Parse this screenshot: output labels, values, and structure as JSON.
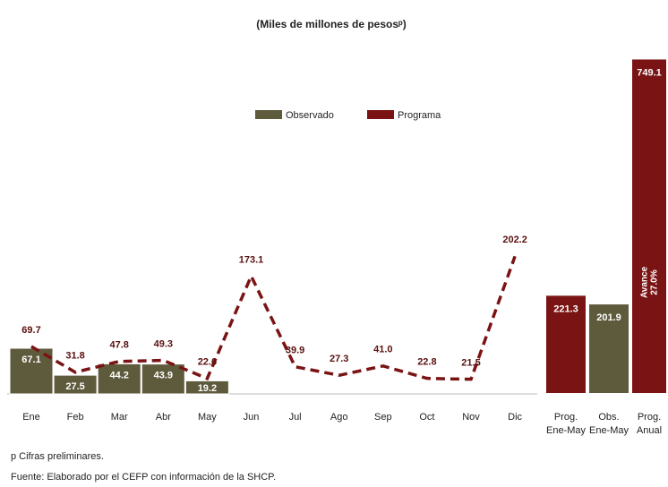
{
  "chart_data": [
    {
      "type": "combo",
      "title": "(Miles de millones de pesosᵖ)",
      "categories": [
        "Ene",
        "Feb",
        "Mar",
        "Abr",
        "May",
        "Jun",
        "Jul",
        "Ago",
        "Sep",
        "Oct",
        "Nov",
        "Dic"
      ],
      "series": [
        {
          "name": "Observado",
          "type": "bar",
          "color": "#5e5a3c",
          "values": [
            67.1,
            27.5,
            44.2,
            43.9,
            19.2,
            null,
            null,
            null,
            null,
            null,
            null,
            null
          ]
        },
        {
          "name": "Programa",
          "type": "line",
          "color": "#7a1414",
          "dashed": true,
          "values": [
            69.7,
            31.8,
            47.8,
            49.3,
            22.6,
            173.1,
            39.9,
            27.3,
            41.0,
            22.8,
            21.5,
            202.2
          ],
          "value_labels": [
            "69.7",
            "31.8",
            "47.8",
            "49.3",
            "22.6",
            "173.1",
            "39.9",
            "27.3",
            "41.0",
            "22.8",
            "21.5",
            "202.2"
          ]
        }
      ],
      "legend": "top",
      "footnotes": [
        "p Cifras preliminares.",
        "Fuente: Elaborado por el CEFP con información de la SHCP."
      ]
    },
    {
      "type": "bar",
      "categories": [
        [
          "Prog.",
          "Ene-May"
        ],
        [
          "Obs.",
          "Ene-May"
        ],
        [
          "Prog.",
          "Anual"
        ]
      ],
      "values": [
        221.3,
        201.9,
        749.1
      ],
      "colors": [
        "#7a1414",
        "#5e5a3c",
        "#7a1414"
      ],
      "annotation": [
        "Avance",
        "27.0%"
      ]
    }
  ]
}
